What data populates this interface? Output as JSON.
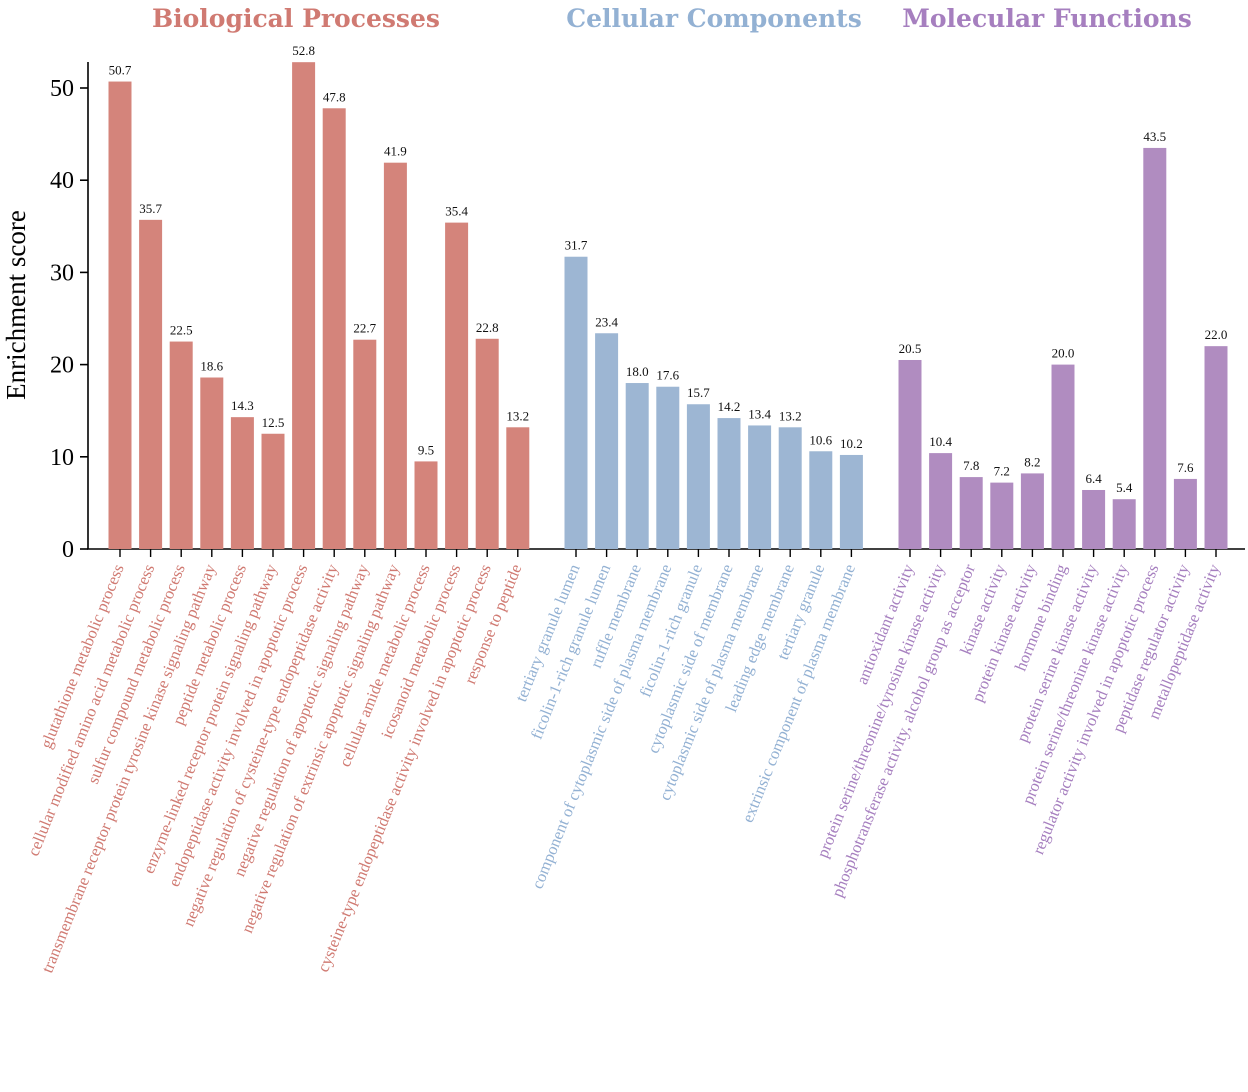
{
  "chart_data": {
    "type": "bar",
    "ylabel": "Enrichment score",
    "xlabel": "",
    "ylim": [
      0,
      54
    ],
    "yticks": [
      0,
      10,
      20,
      30,
      40,
      50
    ],
    "grid": false,
    "groups": [
      {
        "name": "Biological Processes",
        "color": "#d4847b",
        "text_color": "#d07a72",
        "categories": [
          "glutathione metabolic process",
          "cellular modified amino acid metabolic process",
          "sulfur compound metabolic process",
          "transmembrane receptor protein tyrosine kinase signaling pathway",
          "peptide metabolic process",
          "enzyme-linked receptor protein signaling pathway",
          "endopeptidase activity involved in apoptotic process",
          "negative regulation of cysteine-type endopeptidase activity",
          "negative regulation of apoptotic signaling pathway",
          "negative regulation of extrinsic apoptotic signaling pathway",
          "cellular amide metabolic process",
          "icosanoid metabolic process",
          "cysteine-type endopeptidase activity involved in apoptotic process",
          "response to peptide"
        ],
        "values": [
          50.7,
          35.7,
          22.5,
          18.6,
          14.3,
          12.5,
          52.8,
          47.8,
          22.7,
          41.9,
          9.5,
          35.4,
          22.8,
          13.2
        ],
        "value_labels": [
          "50.7",
          "35.7",
          "22.5",
          "18.6",
          "14.3",
          "12.5",
          "52.8",
          "47.8",
          "22.7",
          "41.9",
          "9.5",
          "35.4",
          "22.8",
          "13.2"
        ]
      },
      {
        "name": "Cellular Components",
        "color": "#9db6d3",
        "text_color": "#93b1d3",
        "categories": [
          "tertiary granule lumen",
          "ficolin-1-rich granule lumen",
          "ruffle membrane",
          "component of cytoplasmic side of plasma membrane",
          "ficolin-1-rich granule",
          "cytoplasmic side of membrane",
          "cytoplasmic side of plasma membrane",
          "leading edge membrane",
          "tertiary granule",
          "extrinsic component of plasma membrane"
        ],
        "values": [
          31.7,
          23.4,
          18.0,
          17.6,
          15.7,
          14.2,
          13.4,
          13.2,
          10.6,
          10.2
        ],
        "value_labels": [
          "31.7",
          "23.4",
          "18.0",
          "17.6",
          "15.7",
          "14.2",
          "13.4",
          "13.2",
          "10.6",
          "10.2"
        ]
      },
      {
        "name": "Molecular Functions",
        "color": "#b08cc0",
        "text_color": "#a67fbf",
        "categories": [
          "antioxidant activity",
          "protein serine/threonine/tyrosine kinase activity",
          "phosphotransferase activity, alcohol group as acceptor",
          "kinase activity",
          "protein kinase activity",
          "hormone binding",
          "protein serine kinase activity",
          "protein serine/threonine kinase activity",
          "regulator activity involved in apoptotic process",
          "peptidase regulator activity",
          "metallopeptidase activity"
        ],
        "values": [
          20.5,
          10.4,
          7.8,
          7.2,
          8.2,
          20.0,
          6.4,
          5.4,
          43.5,
          7.6,
          22.0
        ],
        "value_labels": [
          "20.5",
          "10.4",
          "7.8",
          "7.2",
          "8.2",
          "20.0",
          "6.4",
          "5.4",
          "43.5",
          "7.6",
          "22.0"
        ]
      }
    ]
  }
}
